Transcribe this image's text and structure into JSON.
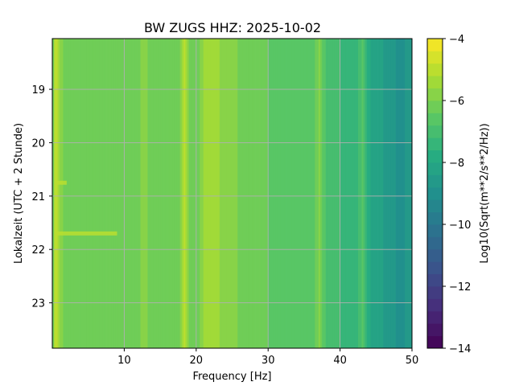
{
  "chart_data": {
    "type": "heatmap",
    "title": "BW ZUGS  HHZ: 2025-10-02",
    "xlabel": "Frequency [Hz]",
    "ylabel": "Lokalzeit (UTC + 2 Stunde)",
    "xlim": [
      0,
      50
    ],
    "ylim": [
      18.05,
      23.85
    ],
    "y_inverted": true,
    "x_ticks": [
      10,
      20,
      30,
      40,
      50
    ],
    "x_tick_labels": [
      "10",
      "20",
      "30",
      "40",
      "50"
    ],
    "y_ticks": [
      19,
      20,
      21,
      22,
      23
    ],
    "y_tick_labels": [
      "19",
      "20",
      "21",
      "22",
      "23"
    ],
    "grid": true,
    "colormap": "viridis",
    "colorbar": {
      "label": "Log10(Sqrt(m**2/s**2/Hz))",
      "range": [
        -14,
        -4
      ],
      "ticks": [
        -14,
        -12,
        -10,
        -8,
        -6,
        -4
      ],
      "tick_labels": [
        "−14",
        "−12",
        "−10",
        "−8",
        "−6",
        "−4"
      ],
      "levels": 25
    },
    "spectrum_profile": {
      "frequency_hz": [
        0,
        0.4,
        0.8,
        1.5,
        3,
        5,
        7,
        9,
        10,
        11.5,
        12.5,
        14,
        16,
        17.8,
        18.3,
        19,
        20.5,
        21.5,
        22.3,
        23,
        24,
        25,
        26,
        28,
        30,
        32,
        34,
        36,
        37.2,
        38,
        40,
        41.5,
        42.5,
        43.2,
        44,
        45,
        46,
        47,
        48,
        48.8,
        49.5,
        50
      ],
      "log10_amplitude": [
        -7.0,
        -4.8,
        -5.5,
        -6.1,
        -6.3,
        -6.4,
        -6.35,
        -6.2,
        -6.3,
        -6.4,
        -5.8,
        -6.2,
        -6.3,
        -6.0,
        -5.0,
        -6.0,
        -6.1,
        -5.3,
        -5.4,
        -5.5,
        -5.8,
        -5.6,
        -6.1,
        -6.3,
        -6.4,
        -6.5,
        -6.6,
        -6.8,
        -5.9,
        -6.9,
        -7.2,
        -7.5,
        -7.2,
        -6.6,
        -7.9,
        -8.2,
        -8.4,
        -8.6,
        -8.9,
        -9.0,
        -8.5,
        -8.7
      ]
    },
    "time_events": [
      {
        "time": 20.75,
        "freq_range": [
          0.5,
          2.0
        ],
        "log10_amplitude": -5.2
      },
      {
        "time": 21.7,
        "freq_range": [
          0.5,
          9.0
        ],
        "log10_amplitude": -5.0
      }
    ]
  }
}
